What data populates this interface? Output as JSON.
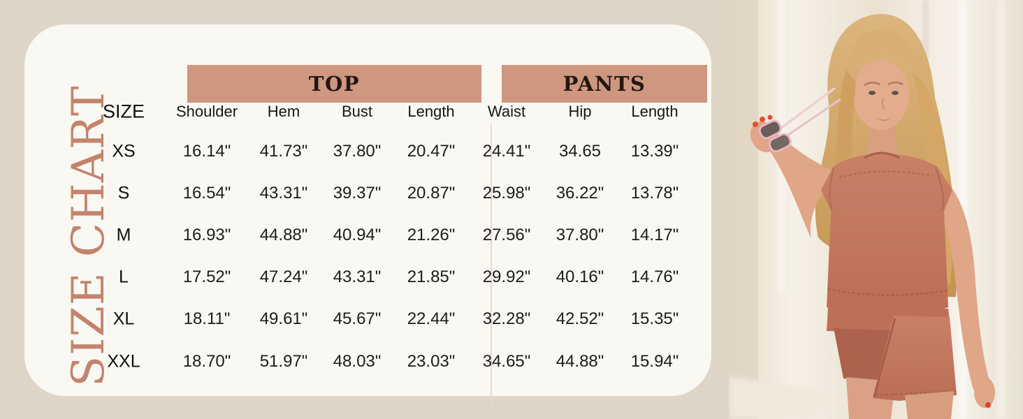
{
  "title": "SIZE CHART",
  "colors": {
    "page_bg": "#ddd5c6",
    "card_bg": "#faf8f2",
    "banner_bg": "#cf9680",
    "banner_text": "#231712",
    "title_text": "#c3846b",
    "divider": "#ead9d2",
    "cell_text": "#1c1c1c",
    "garment_rust": "#c47a62"
  },
  "chart_data": [
    {
      "type": "table",
      "title": "TOP",
      "columns": [
        "SIZE",
        "Shoulder",
        "Hem",
        "Bust",
        "Length"
      ],
      "rows": [
        [
          "XS",
          "16.14\"",
          "41.73\"",
          "37.80\"",
          "20.47\""
        ],
        [
          "S",
          "16.54\"",
          "43.31\"",
          "39.37\"",
          "20.87\""
        ],
        [
          "M",
          "16.93\"",
          "44.88\"",
          "40.94\"",
          "21.26\""
        ],
        [
          "L",
          "17.52\"",
          "47.24\"",
          "43.31\"",
          "21.85\""
        ],
        [
          "XL",
          "18.11\"",
          "49.61\"",
          "45.67\"",
          "22.44\""
        ],
        [
          "XXL",
          "18.70\"",
          "51.97\"",
          "48.03\"",
          "23.03\""
        ]
      ]
    },
    {
      "type": "table",
      "title": "PANTS",
      "columns": [
        "SIZE",
        "Waist",
        "Hip",
        "Length"
      ],
      "rows": [
        [
          "XS",
          "24.41\"",
          "34.65",
          "13.39\""
        ],
        [
          "S",
          "25.98\"",
          "36.22\"",
          "13.78\""
        ],
        [
          "M",
          "27.56\"",
          "37.80\"",
          "14.17\""
        ],
        [
          "L",
          "29.92\"",
          "40.16\"",
          "14.76\""
        ],
        [
          "XL",
          "32.28\"",
          "42.52\"",
          "15.35\""
        ],
        [
          "XXL",
          "34.65\"",
          "44.88\"",
          "15.94\""
        ]
      ]
    }
  ],
  "photo": {
    "alt": "Blonde model wearing a rust sleeveless top and matching wrap skort, holding pink sunglasses"
  }
}
